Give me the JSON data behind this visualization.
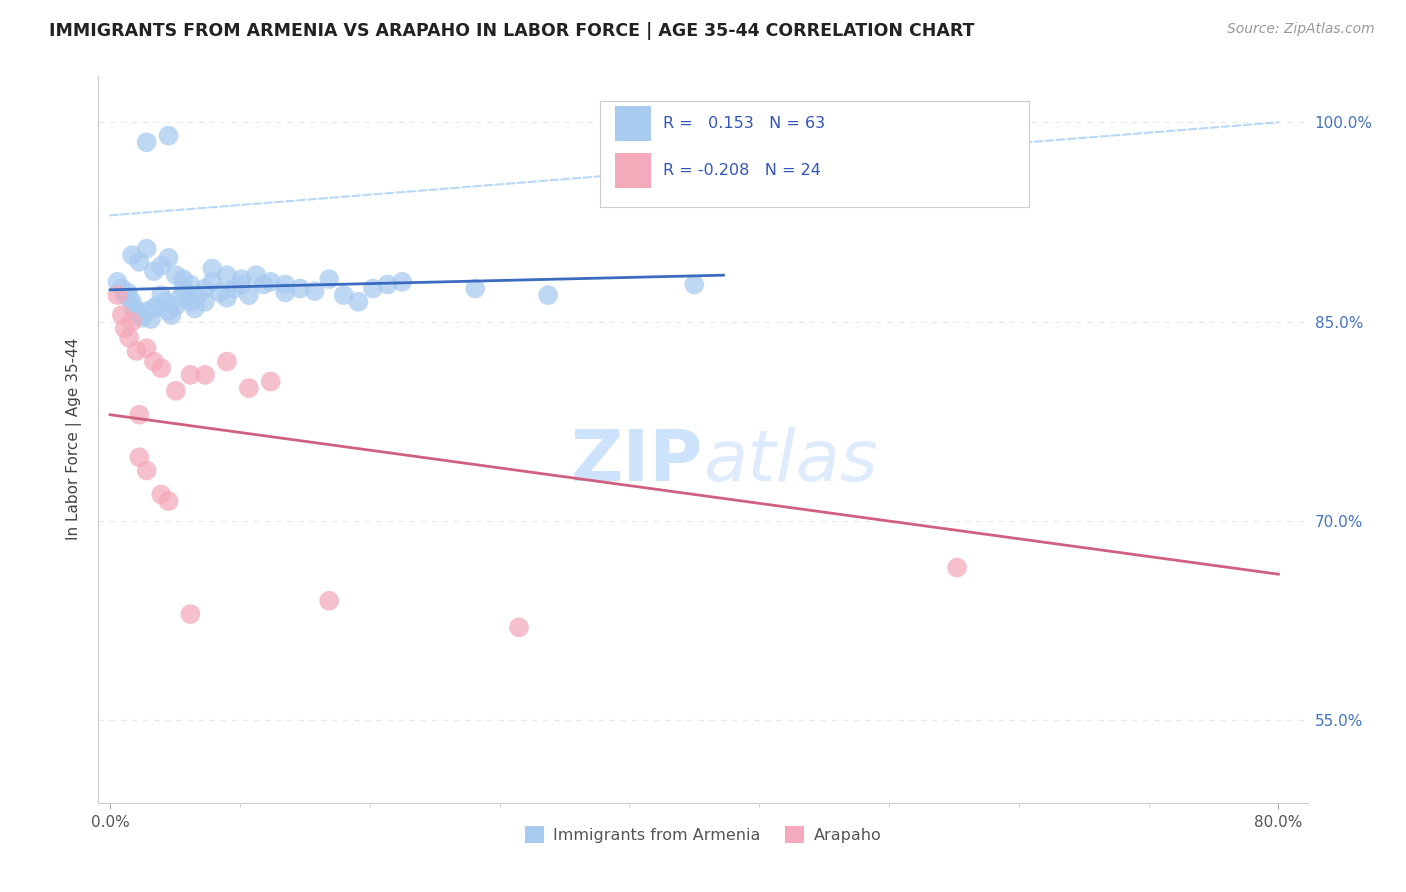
{
  "title": "IMMIGRANTS FROM ARMENIA VS ARAPAHO IN LABOR FORCE | AGE 35-44 CORRELATION CHART",
  "source_text": "Source: ZipAtlas.com",
  "ylabel": "In Labor Force | Age 35-44",
  "legend_label1": "Immigrants from Armenia",
  "legend_label2": "Arapaho",
  "R1": 0.153,
  "N1": 63,
  "R2": -0.208,
  "N2": 24,
  "xlim": [
    -0.008,
    0.82
  ],
  "ylim": [
    0.488,
    1.035
  ],
  "yticks": [
    0.55,
    0.7,
    0.85,
    1.0
  ],
  "yticklabels": [
    "55.0%",
    "70.0%",
    "85.0%",
    "100.0%"
  ],
  "color_blue": "#A8CBF0",
  "color_pink": "#F4AABB",
  "color_line_blue": "#3A6BBF",
  "color_line_pink": "#D06080",
  "color_dashed": "#B8D8F8",
  "watermark_color": "#C8DFFB",
  "background_color": "#FFFFFF",
  "grid_color": "#E8E8F0",
  "blue_scatter_x": [
    0.005,
    0.008,
    0.01,
    0.012,
    0.013,
    0.015,
    0.016,
    0.018,
    0.02,
    0.022,
    0.025,
    0.028,
    0.03,
    0.032,
    0.035,
    0.038,
    0.04,
    0.042,
    0.045,
    0.048,
    0.05,
    0.052,
    0.055,
    0.058,
    0.06,
    0.065,
    0.07,
    0.075,
    0.08,
    0.085,
    0.09,
    0.095,
    0.1,
    0.105,
    0.11,
    0.12,
    0.13,
    0.14,
    0.15,
    0.16,
    0.17,
    0.18,
    0.19,
    0.2,
    0.015,
    0.02,
    0.025,
    0.03,
    0.035,
    0.04,
    0.045,
    0.05,
    0.055,
    0.065,
    0.07,
    0.08,
    0.09,
    0.12,
    0.25,
    0.3,
    0.4,
    0.025,
    0.04
  ],
  "blue_scatter_y": [
    0.88,
    0.875,
    0.87,
    0.872,
    0.868,
    0.865,
    0.86,
    0.858,
    0.855,
    0.853,
    0.858,
    0.852,
    0.86,
    0.862,
    0.87,
    0.865,
    0.858,
    0.855,
    0.862,
    0.868,
    0.875,
    0.87,
    0.865,
    0.86,
    0.87,
    0.865,
    0.88,
    0.872,
    0.868,
    0.875,
    0.882,
    0.87,
    0.885,
    0.878,
    0.88,
    0.878,
    0.875,
    0.873,
    0.882,
    0.87,
    0.865,
    0.875,
    0.878,
    0.88,
    0.9,
    0.895,
    0.905,
    0.888,
    0.892,
    0.898,
    0.885,
    0.882,
    0.878,
    0.875,
    0.89,
    0.885,
    0.878,
    0.872,
    0.875,
    0.87,
    0.878,
    0.985,
    0.99
  ],
  "pink_scatter_x": [
    0.005,
    0.008,
    0.01,
    0.013,
    0.015,
    0.018,
    0.02,
    0.025,
    0.03,
    0.035,
    0.045,
    0.055,
    0.065,
    0.08,
    0.095,
    0.11,
    0.02,
    0.025,
    0.035,
    0.04,
    0.055,
    0.15,
    0.28,
    0.58
  ],
  "pink_scatter_y": [
    0.87,
    0.855,
    0.845,
    0.838,
    0.85,
    0.828,
    0.78,
    0.83,
    0.82,
    0.815,
    0.798,
    0.81,
    0.81,
    0.82,
    0.8,
    0.805,
    0.748,
    0.738,
    0.72,
    0.715,
    0.63,
    0.64,
    0.62,
    0.665
  ],
  "blue_line_x": [
    0.0,
    0.42
  ],
  "blue_line_y": [
    0.874,
    0.885
  ],
  "pink_line_x": [
    0.0,
    0.8
  ],
  "pink_line_y": [
    0.78,
    0.66
  ],
  "dashed_line_x": [
    0.0,
    0.8
  ],
  "dashed_line_y": [
    0.93,
    1.0
  ]
}
